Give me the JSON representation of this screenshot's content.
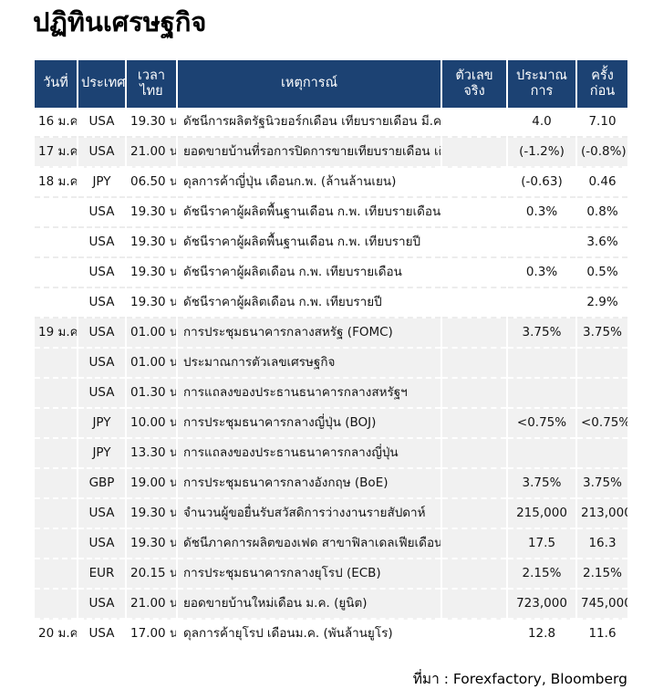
{
  "title": "ปฏิทินเศรษฐกิจ",
  "source_note": "ที่มา : Forexfactory, Bloomberg",
  "colors": {
    "header_bg": "#1C4273",
    "header_text": "#FFFFFF",
    "row_shaded_bg": "#F1F1F1",
    "row_plain_bg": "#FFFFFF",
    "body_text": "#141414"
  },
  "table": {
    "columns": [
      {
        "key": "date",
        "label": "วันที่"
      },
      {
        "key": "country",
        "label": "ประเทศ"
      },
      {
        "key": "time",
        "label": "เวลาไทย"
      },
      {
        "key": "event",
        "label": "เหตุการณ์"
      },
      {
        "key": "actual",
        "label": "ตัวเลขจริง"
      },
      {
        "key": "forecast",
        "label": "ประมาณการ"
      },
      {
        "key": "previous",
        "label": "ครั้งก่อน"
      }
    ],
    "rows": [
      {
        "date": "16 ม.ค.",
        "country": "USA",
        "time": "19.30 น.",
        "event": "ดัชนีการผลิตรัฐนิวยอร์กเดือน เทียบรายเดือน มี.ค.",
        "actual": "",
        "forecast": "4.0",
        "previous": "7.10",
        "shade": "plain"
      },
      {
        "date": "17 ม.ค.",
        "country": "USA",
        "time": "21.00 น.",
        "event": "ยอดขายบ้านที่รอการปิดการขายเทียบรายเดือน เดือน ก.พ.",
        "actual": "",
        "forecast": "(-1.2%)",
        "previous": "(-0.8%)",
        "shade": "shaded"
      },
      {
        "date": "18 ม.ค.",
        "country": "JPY",
        "time": "06.50 น.",
        "event": "ดุลการค้าญี่ปุ่น เดือนก.พ. (ล้านล้านเยน)",
        "actual": "",
        "forecast": "(-0.63)",
        "previous": "0.46",
        "shade": "plain"
      },
      {
        "date": "",
        "country": "USA",
        "time": "19.30 น.",
        "event": "ดัชนีราคาผู้ผลิตพื้นฐานเดือน ก.พ. เทียบรายเดือน",
        "actual": "",
        "forecast": "0.3%",
        "previous": "0.8%",
        "shade": "plain"
      },
      {
        "date": "",
        "country": "USA",
        "time": "19.30 น",
        "event": "ดัชนีราคาผู้ผลิตพื้นฐานเดือน ก.พ. เทียบรายปี",
        "actual": "",
        "forecast": "",
        "previous": "3.6%",
        "shade": "plain"
      },
      {
        "date": "",
        "country": "USA",
        "time": "19.30 น.",
        "event": "ดัชนีราคาผู้ผลิตเดือน ก.พ. เทียบรายเดือน",
        "actual": "",
        "forecast": "0.3%",
        "previous": "0.5%",
        "shade": "plain"
      },
      {
        "date": "",
        "country": "USA",
        "time": "19.30 น",
        "event": "ดัชนีราคาผู้ผลิตเดือน ก.พ. เทียบรายปี",
        "actual": "",
        "forecast": "",
        "previous": "2.9%",
        "shade": "plain"
      },
      {
        "date": "19 ม.ค.",
        "country": "USA",
        "time": "01.00 น.",
        "event": "การประชุมธนาคารกลางสหรัฐ (FOMC)",
        "actual": "",
        "forecast": "3.75%",
        "previous": "3.75%",
        "shade": "shaded"
      },
      {
        "date": "",
        "country": "USA",
        "time": "01.00 น.",
        "event": "ประมาณการตัวเลขเศรษฐกิจ",
        "actual": "",
        "forecast": "",
        "previous": "",
        "shade": "shaded"
      },
      {
        "date": "",
        "country": "USA",
        "time": "01.30 น.",
        "event": "การแถลงของประธานธนาคารกลางสหรัฐฯ",
        "actual": "",
        "forecast": "",
        "previous": "",
        "shade": "shaded"
      },
      {
        "date": "",
        "country": "JPY",
        "time": "10.00 น.",
        "event": "การประชุมธนาคารกลางญี่ปุ่น (BOJ)",
        "actual": "",
        "forecast": "<0.75%",
        "previous": "<0.75%",
        "shade": "shaded"
      },
      {
        "date": "",
        "country": "JPY",
        "time": "13.30 น.",
        "event": "การแถลงของประธานธนาคารกลางญี่ปุ่น",
        "actual": "",
        "forecast": "",
        "previous": "",
        "shade": "shaded"
      },
      {
        "date": "",
        "country": "GBP",
        "time": "19.00 น.",
        "event": "การประชุมธนาคารกลางอังกฤษ (BoE)",
        "actual": "",
        "forecast": "3.75%",
        "previous": "3.75%",
        "shade": "shaded"
      },
      {
        "date": "",
        "country": "USA",
        "time": "19.30 น.",
        "event": "จำนวนผู้ขอยื่นรับสวัสดิการว่างงานรายสัปดาห์",
        "actual": "",
        "forecast": "215,000",
        "previous": "213,000",
        "shade": "shaded"
      },
      {
        "date": "",
        "country": "USA",
        "time": "19.30 น.",
        "event": "ดัชนีภาคการผลิตของเฟด สาขาฟิลาเดลเฟียเดือน มี.ค.",
        "actual": "",
        "forecast": "17.5",
        "previous": "16.3",
        "shade": "shaded"
      },
      {
        "date": "",
        "country": "EUR",
        "time": "20.15 น.",
        "event": "การประชุมธนาคารกลางยุโรป (ECB)",
        "actual": "",
        "forecast": "2.15%",
        "previous": "2.15%",
        "shade": "shaded"
      },
      {
        "date": "",
        "country": "USA",
        "time": "21.00 น.",
        "event": "ยอดขายบ้านใหม่เดือน ม.ค. (ยูนิต)",
        "actual": "",
        "forecast": "723,000",
        "previous": "745,000",
        "shade": "shaded"
      },
      {
        "date": "20 ม.ค.",
        "country": "USA",
        "time": "17.00 น.",
        "event": "ดุลการค้ายุโรป เดือนม.ค. (พันล้านยูโร)",
        "actual": "",
        "forecast": "12.8",
        "previous": "11.6",
        "shade": "plain"
      }
    ]
  }
}
